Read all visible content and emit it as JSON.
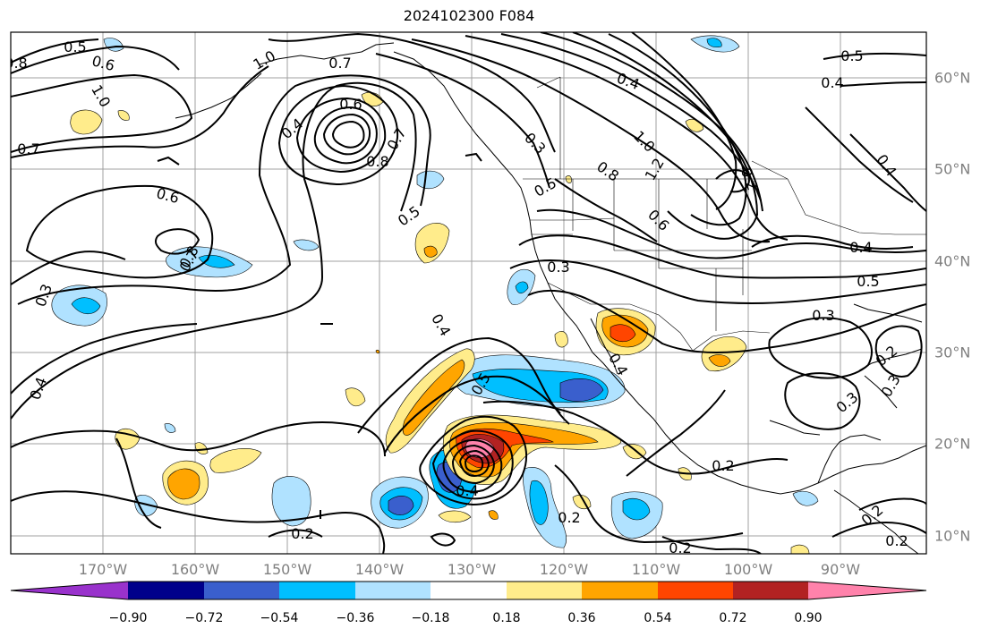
{
  "title": "2024102300 F084",
  "map": {
    "lon_labels": [
      "170°W",
      "160°W",
      "150°W",
      "140°W",
      "130°W",
      "120°W",
      "110°W",
      "100°W",
      "90°W"
    ],
    "lat_labels": [
      "60°N",
      "50°N",
      "40°N",
      "30°N",
      "20°N",
      "10°N"
    ]
  },
  "contour_labels": [
    {
      "text": "0.5"
    },
    {
      "text": "0.6"
    },
    {
      "text": "0.8"
    },
    {
      "text": "1.0"
    },
    {
      "text": "1.0"
    },
    {
      "text": "0.7"
    },
    {
      "text": "0.6"
    },
    {
      "text": "0.4"
    },
    {
      "text": "0.8"
    },
    {
      "text": "0.7"
    },
    {
      "text": "0.6"
    },
    {
      "text": "0.8"
    },
    {
      "text": "0.7"
    },
    {
      "text": "0.5"
    },
    {
      "text": "0.3"
    },
    {
      "text": "1.0"
    },
    {
      "text": "0.8"
    },
    {
      "text": "1.2"
    },
    {
      "text": "0.2"
    },
    {
      "text": "0.6"
    },
    {
      "text": "0.5"
    },
    {
      "text": "0.4"
    },
    {
      "text": "0.5"
    },
    {
      "text": "0.4"
    },
    {
      "text": "0.4"
    },
    {
      "text": "0.3"
    },
    {
      "text": "0.3"
    },
    {
      "text": "0.4"
    },
    {
      "text": "0.7"
    },
    {
      "text": "0.4"
    },
    {
      "text": "0.4"
    },
    {
      "text": "0.5"
    },
    {
      "text": "0.3"
    },
    {
      "text": "0.2"
    },
    {
      "text": "0.3"
    },
    {
      "text": "0.3"
    },
    {
      "text": "0.2"
    },
    {
      "text": "0.4"
    },
    {
      "text": "0.5"
    },
    {
      "text": "0.2"
    },
    {
      "text": "0.2"
    },
    {
      "text": "0.2"
    },
    {
      "text": "0.2"
    },
    {
      "text": "0.2"
    },
    {
      "text": "0.4"
    }
  ],
  "colorbar": {
    "labels": [
      "−0.90",
      "−0.72",
      "−0.54",
      "−0.36",
      "−0.18",
      "0.18",
      "0.36",
      "0.54",
      "0.72",
      "0.90"
    ],
    "colors": [
      "#9932cc",
      "#00008b",
      "#3a5fcd",
      "#00bfff",
      "#b0e2ff",
      "#ffffff",
      "#ffec8b",
      "#ffa500",
      "#ff4500",
      "#b22222",
      "#ff82ab"
    ]
  }
}
